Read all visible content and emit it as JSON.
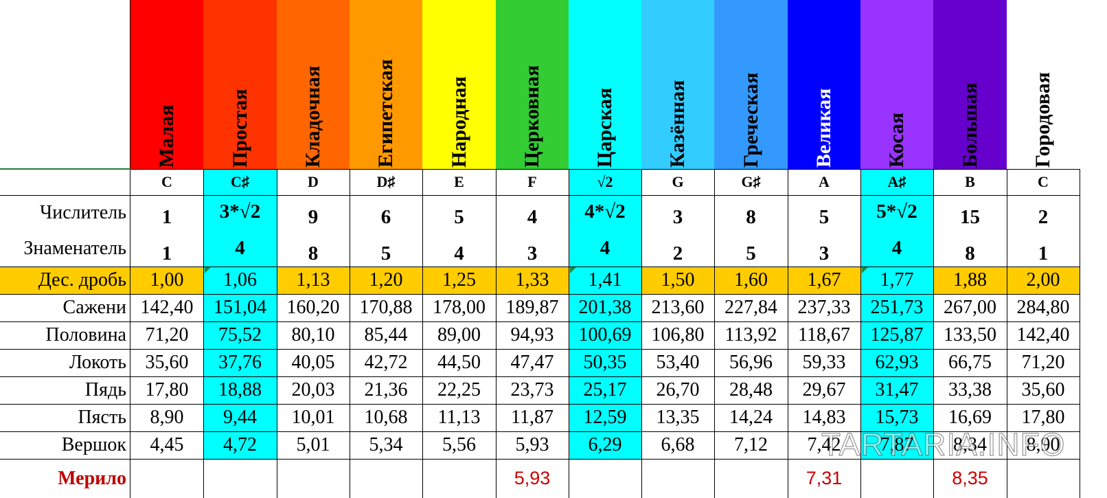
{
  "columns": [
    {
      "name": "Малая",
      "note": "C",
      "num": "1",
      "den": "1",
      "dec": "1,00",
      "sazheni": "142,40",
      "polovina": "71,20",
      "lokot": "35,60",
      "pyad": "17,80",
      "pyast": "8,90",
      "vershok": "4,45",
      "merilo": "",
      "color": "#ff0000",
      "text_color": "#000000",
      "highlight": false
    },
    {
      "name": "Простая",
      "note": "C♯",
      "num": "3*√2",
      "den": "4",
      "dec": "1,06",
      "sazheni": "151,04",
      "polovina": "75,52",
      "lokot": "37,76",
      "pyad": "18,88",
      "pyast": "9,44",
      "vershok": "4,72",
      "merilo": "",
      "color": "#ff3300",
      "text_color": "#000000",
      "highlight": true
    },
    {
      "name": "Кладочная",
      "note": "D",
      "num": "9",
      "den": "8",
      "dec": "1,13",
      "sazheni": "160,20",
      "polovina": "80,10",
      "lokot": "40,05",
      "pyad": "20,03",
      "pyast": "10,01",
      "vershok": "5,01",
      "merilo": "",
      "color": "#ff6600",
      "text_color": "#000000",
      "highlight": false
    },
    {
      "name": "Египетская",
      "note": "D♯",
      "num": "6",
      "den": "5",
      "dec": "1,20",
      "sazheni": "170,88",
      "polovina": "85,44",
      "lokot": "42,72",
      "pyad": "21,36",
      "pyast": "10,68",
      "vershok": "5,34",
      "merilo": "",
      "color": "#ff9900",
      "text_color": "#000000",
      "highlight": false
    },
    {
      "name": "Народная",
      "note": "E",
      "num": "5",
      "den": "4",
      "dec": "1,25",
      "sazheni": "178,00",
      "polovina": "89,00",
      "lokot": "44,50",
      "pyad": "22,25",
      "pyast": "11,13",
      "vershok": "5,56",
      "merilo": "",
      "color": "#ffff00",
      "text_color": "#000000",
      "highlight": false
    },
    {
      "name": "Церковная",
      "note": "F",
      "num": "4",
      "den": "3",
      "dec": "1,33",
      "sazheni": "189,87",
      "polovina": "94,93",
      "lokot": "47,47",
      "pyad": "23,73",
      "pyast": "11,87",
      "vershok": "5,93",
      "merilo": "5,93",
      "color": "#33cc33",
      "text_color": "#000000",
      "highlight": false
    },
    {
      "name": "Царская",
      "note": "√2",
      "num": "4*√2",
      "den": "4",
      "dec": "1,41",
      "sazheni": "201,38",
      "polovina": "100,69",
      "lokot": "50,35",
      "pyad": "25,17",
      "pyast": "12,59",
      "vershok": "6,29",
      "merilo": "",
      "color": "#00ffff",
      "text_color": "#000000",
      "highlight": true
    },
    {
      "name": "Казённая",
      "note": "G",
      "num": "3",
      "den": "2",
      "dec": "1,50",
      "sazheni": "213,60",
      "polovina": "106,80",
      "lokot": "53,40",
      "pyad": "26,70",
      "pyast": "13,35",
      "vershok": "6,68",
      "merilo": "",
      "color": "#33ccff",
      "text_color": "#000000",
      "highlight": false
    },
    {
      "name": "Греческая",
      "note": "G♯",
      "num": "8",
      "den": "5",
      "dec": "1,60",
      "sazheni": "227,84",
      "polovina": "113,92",
      "lokot": "56,96",
      "pyad": "28,48",
      "pyast": "14,24",
      "vershok": "7,12",
      "merilo": "",
      "color": "#3399ff",
      "text_color": "#000000",
      "highlight": false
    },
    {
      "name": "Великая",
      "note": "A",
      "num": "5",
      "den": "3",
      "dec": "1,67",
      "sazheni": "237,33",
      "polovina": "118,67",
      "lokot": "59,33",
      "pyad": "29,67",
      "pyast": "14,83",
      "vershok": "7,42",
      "merilo": "7,31",
      "color": "#0000ff",
      "text_color": "#ffffff",
      "highlight": false
    },
    {
      "name": "Косая",
      "note": "A♯",
      "num": "5*√2",
      "den": "4",
      "dec": "1,77",
      "sazheni": "251,73",
      "polovina": "125,87",
      "lokot": "62,93",
      "pyad": "31,47",
      "pyast": "15,73",
      "vershok": "7,87",
      "merilo": "",
      "color": "#9933ff",
      "text_color": "#000000",
      "highlight": true
    },
    {
      "name": "Большая",
      "note": "B",
      "num": "15",
      "den": "8",
      "dec": "1,88",
      "sazheni": "267,00",
      "polovina": "133,50",
      "lokot": "66,75",
      "pyad": "33,38",
      "pyast": "16,69",
      "vershok": "8,34",
      "merilo": "8,35",
      "color": "#6600cc",
      "text_color": "#000000",
      "highlight": false
    },
    {
      "name": "Городовая",
      "note": "C",
      "num": "2",
      "den": "1",
      "dec": "2,00",
      "sazheni": "284,80",
      "polovina": "142,40",
      "lokot": "71,20",
      "pyad": "35,60",
      "pyast": "17,80",
      "vershok": "8,90",
      "merilo": "",
      "color": "#ffffff",
      "text_color": "#000000",
      "highlight": false
    }
  ],
  "row_labels": {
    "num": "Числитель",
    "den": "Знаменатель",
    "dec": "Дес. дробь",
    "sazheni": "Сажени",
    "polovina": "Половина",
    "lokot": "Локоть",
    "pyad": "Пядь",
    "pyast": "Пясть",
    "vershok": "Вершок",
    "merilo": "Мерило"
  },
  "watermark": "TARTARIA.INFO",
  "colors": {
    "highlight": "#00ffff",
    "decimal_row": "#ffcc00",
    "merilo_label": "#c00000",
    "merilo_value": "#cc0000",
    "formula_marker": "#1f8a3c"
  }
}
